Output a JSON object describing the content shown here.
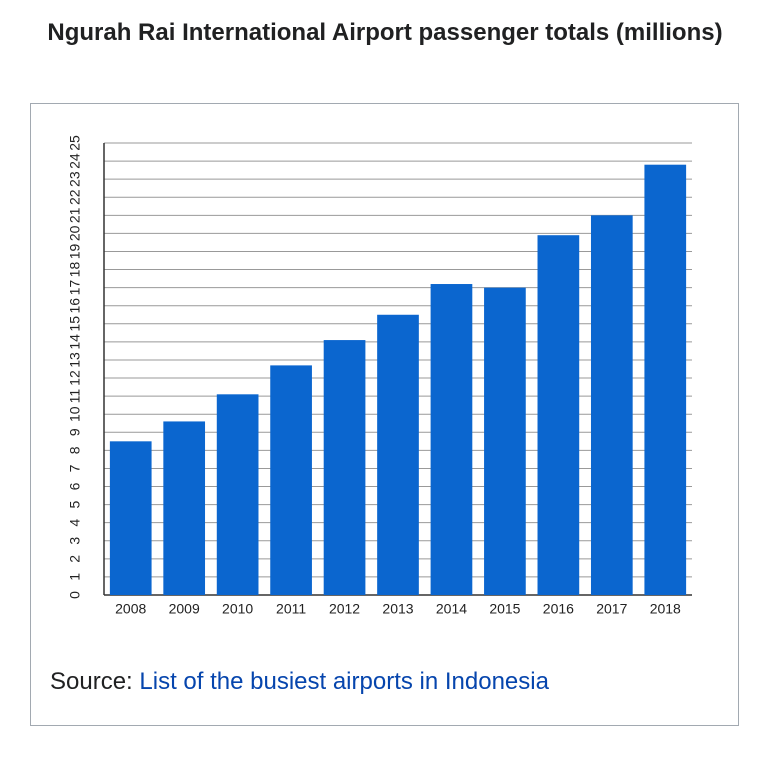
{
  "chart_data": {
    "type": "bar",
    "title": "Ngurah Rai International Airport passenger totals (millions)",
    "categories": [
      "2008",
      "2009",
      "2010",
      "2011",
      "2012",
      "2013",
      "2014",
      "2015",
      "2016",
      "2017",
      "2018"
    ],
    "values": [
      8.5,
      9.6,
      11.1,
      12.7,
      14.1,
      15.5,
      17.2,
      17.0,
      19.9,
      21.0,
      23.8
    ],
    "color": "#0b66cf",
    "ylim": [
      0,
      25
    ],
    "yticks": [
      0,
      1,
      2,
      3,
      4,
      5,
      6,
      7,
      8,
      9,
      10,
      11,
      12,
      13,
      14,
      15,
      16,
      17,
      18,
      19,
      20,
      21,
      22,
      23,
      24,
      25
    ],
    "grid": true
  },
  "source": {
    "label": "Source:",
    "link": "List of the busiest airports in Indonesia"
  }
}
